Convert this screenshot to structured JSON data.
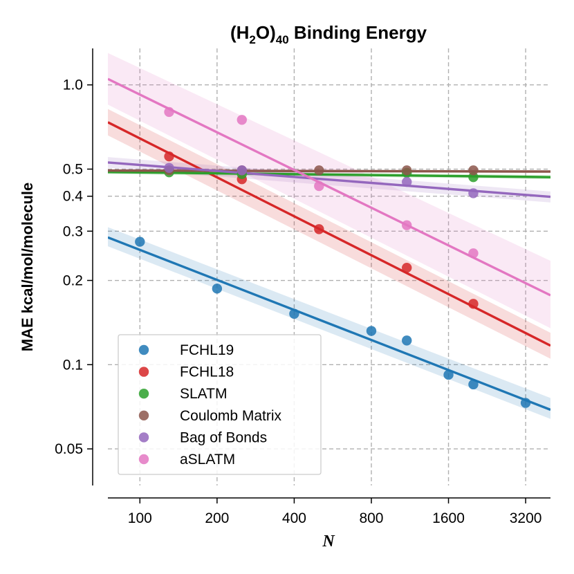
{
  "chart_data": {
    "type": "scatter",
    "title_parts": {
      "a": "(H",
      "b": "2",
      "c": "O)",
      "d": "40",
      "e": " Binding Energy"
    },
    "xlabel": "N",
    "ylabel": "MAE kcal/mol/molecule",
    "x_scale": "log2",
    "y_scale": "log",
    "xlim": [
      75,
      4000
    ],
    "ylim": [
      0.037,
      1.35
    ],
    "x_ticks": [
      {
        "value": 100,
        "label": "100"
      },
      {
        "value": 200,
        "label": "200"
      },
      {
        "value": 400,
        "label": "400"
      },
      {
        "value": 800,
        "label": "800"
      },
      {
        "value": 1600,
        "label": "1600"
      },
      {
        "value": 3200,
        "label": "3200"
      }
    ],
    "y_ticks": [
      {
        "value": 0.05,
        "label": "0.05"
      },
      {
        "value": 0.1,
        "label": "0.1"
      },
      {
        "value": 0.2,
        "label": "0.2"
      },
      {
        "value": 0.3,
        "label": "0.3"
      },
      {
        "value": 0.4,
        "label": "0.4"
      },
      {
        "value": 0.5,
        "label": "0.5"
      },
      {
        "value": 1.0,
        "label": "1.0"
      }
    ],
    "grid": true,
    "legend_position": "lower-left",
    "series": [
      {
        "name": "FCHL19",
        "color": "#1f77b4",
        "points": [
          [
            100,
            0.275
          ],
          [
            200,
            0.187
          ],
          [
            400,
            0.152
          ],
          [
            800,
            0.132
          ],
          [
            1100,
            0.122
          ],
          [
            1600,
            0.092
          ],
          [
            2000,
            0.085
          ],
          [
            3200,
            0.073
          ]
        ],
        "fit": {
          "x0": 75,
          "y0": 0.285,
          "x1": 4000,
          "y1": 0.069
        },
        "band": {
          "start": [
            0.265,
            0.31
          ],
          "end": [
            0.064,
            0.076
          ]
        }
      },
      {
        "name": "FCHL18",
        "color": "#d62728",
        "points": [
          [
            130,
            0.555
          ],
          [
            250,
            0.46
          ],
          [
            500,
            0.305
          ],
          [
            1100,
            0.222
          ],
          [
            2000,
            0.165
          ]
        ],
        "fit": {
          "x0": 75,
          "y0": 0.735,
          "x1": 4000,
          "y1": 0.117
        },
        "band": {
          "start": [
            0.66,
            0.82
          ],
          "end": [
            0.105,
            0.13
          ]
        }
      },
      {
        "name": "SLATM",
        "color": "#2ca02c",
        "points": [
          [
            130,
            0.487
          ],
          [
            250,
            0.48
          ],
          [
            1100,
            0.485
          ],
          [
            2000,
            0.468
          ]
        ],
        "fit": {
          "x0": 75,
          "y0": 0.488,
          "x1": 4000,
          "y1": 0.468
        },
        "band": {
          "start": [
            0.48,
            0.496
          ],
          "end": [
            0.46,
            0.476
          ]
        }
      },
      {
        "name": "Coulomb Matrix",
        "color": "#8c564b",
        "points": [
          [
            130,
            0.495
          ],
          [
            250,
            0.495
          ],
          [
            500,
            0.495
          ],
          [
            1100,
            0.495
          ],
          [
            2000,
            0.495
          ]
        ],
        "fit": {
          "x0": 75,
          "y0": 0.494,
          "x1": 4000,
          "y1": 0.49
        },
        "band": {
          "start": [
            0.488,
            0.5
          ],
          "end": [
            0.484,
            0.496
          ]
        }
      },
      {
        "name": "Bag of Bonds",
        "color": "#9467bd",
        "points": [
          [
            130,
            0.505
          ],
          [
            250,
            0.495
          ],
          [
            1100,
            0.45
          ],
          [
            2000,
            0.41
          ]
        ],
        "fit": {
          "x0": 75,
          "y0": 0.528,
          "x1": 4000,
          "y1": 0.398
        },
        "band": {
          "start": [
            0.505,
            0.552
          ],
          "end": [
            0.38,
            0.416
          ]
        }
      },
      {
        "name": "aSLATM",
        "color": "#e377c2",
        "points": [
          [
            130,
            0.8
          ],
          [
            250,
            0.75
          ],
          [
            500,
            0.435
          ],
          [
            1100,
            0.315
          ],
          [
            2000,
            0.25
          ]
        ],
        "fit": {
          "x0": 75,
          "y0": 1.05,
          "x1": 4000,
          "y1": 0.177
        },
        "band": {
          "start": [
            0.85,
            1.3
          ],
          "end": [
            0.135,
            0.235
          ]
        }
      }
    ]
  }
}
